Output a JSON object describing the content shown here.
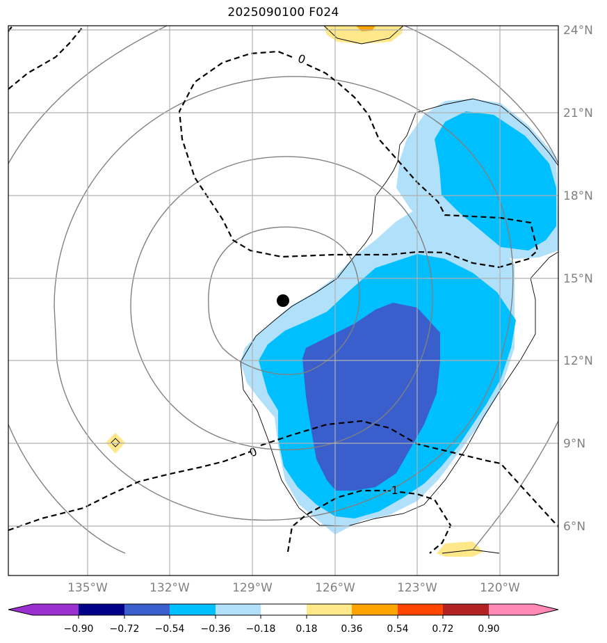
{
  "title": "2025090100 F024",
  "lat_labels": [
    "24°N",
    "21°N",
    "18°N",
    "15°N",
    "12°N",
    "9°N",
    "6°N"
  ],
  "lon_labels": [
    "135°W",
    "132°W",
    "129°W",
    "126°W",
    "123°W",
    "120°W"
  ],
  "contour_labels": [
    "0",
    "0",
    "-1"
  ],
  "colorbar": {
    "ticks": [
      "−0.90",
      "−0.72",
      "−0.54",
      "−0.36",
      "−0.18",
      "0.18",
      "0.36",
      "0.54",
      "0.72",
      "0.90"
    ],
    "colors": [
      "#9b30d0",
      "#00008b",
      "#3a5fcd",
      "#00bfff",
      "#b0e0fa",
      "#ffffff",
      "#ffe88a",
      "#ffa500",
      "#ff4500",
      "#b22222",
      "#ff88b4"
    ]
  },
  "storm_center": {
    "lat": 14.2,
    "lon": -127.8
  }
}
